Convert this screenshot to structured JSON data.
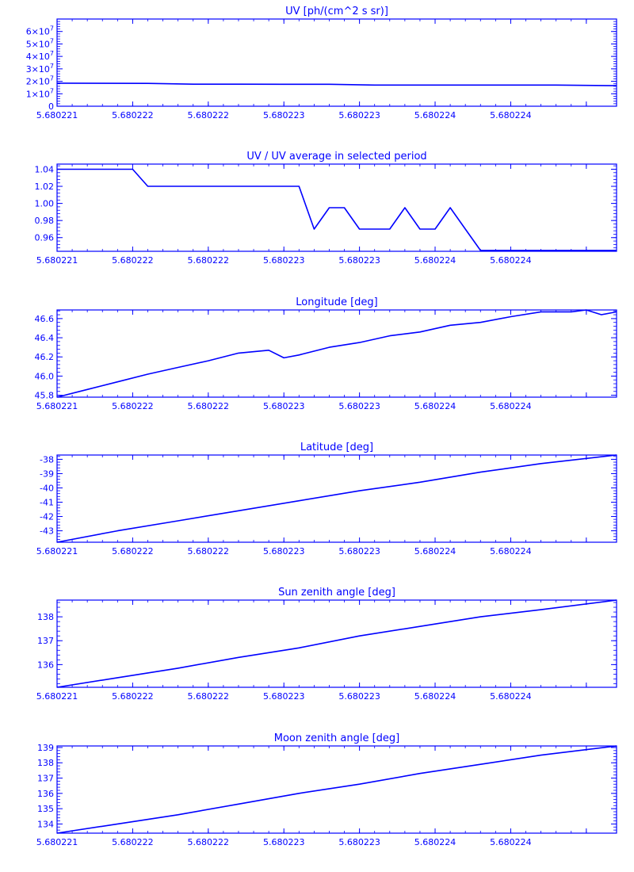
{
  "figure": {
    "color": "#0000ff",
    "background": "#ffffff"
  },
  "chart_data": [
    {
      "type": "line",
      "title": "UV [ph/(cm^2 s sr)]",
      "xlabel": "",
      "ylabel": "",
      "xlim": [
        5.680221,
        5.6802247
      ],
      "ylim": [
        0,
        70000000
      ],
      "ytick_values": [
        0,
        10000000,
        20000000,
        30000000,
        40000000,
        50000000,
        60000000
      ],
      "ytick_labels": [
        {
          "mantissa": "0",
          "exp": ""
        },
        {
          "mantissa": "1×10",
          "exp": "7"
        },
        {
          "mantissa": "2×10",
          "exp": "7"
        },
        {
          "mantissa": "3×10",
          "exp": "7"
        },
        {
          "mantissa": "4×10",
          "exp": "7"
        },
        {
          "mantissa": "5×10",
          "exp": "7"
        },
        {
          "mantissa": "6×10",
          "exp": "7"
        }
      ],
      "xtick_values": [
        5.680221,
        5.6802215,
        5.680222,
        5.6802225,
        5.680223,
        5.6802235,
        5.680224,
        5.6802245
      ],
      "xtick_labels": [
        "5.680221",
        "5.680222",
        "5.680222",
        "5.680223",
        "5.680223",
        "5.680224",
        "5.680224",
        ""
      ],
      "x": [
        5.680221,
        5.6802213,
        5.6802216,
        5.6802219,
        5.6802222,
        5.6802225,
        5.6802228,
        5.6802231,
        5.6802234,
        5.6802237,
        5.680224,
        5.6802243,
        5.6802247
      ],
      "y": [
        18500000,
        18400000,
        18300000,
        17700000,
        17700000,
        17600000,
        17600000,
        17000000,
        17000000,
        17000000,
        17000000,
        17000000,
        16500000
      ]
    },
    {
      "type": "line",
      "title": "UV / UV average in selected period",
      "xlabel": "",
      "ylabel": "",
      "xlim": [
        5.680221,
        5.6802247
      ],
      "ylim": [
        0.944,
        1.046
      ],
      "ytick_values": [
        0.96,
        0.98,
        1.0,
        1.02,
        1.04
      ],
      "ytick_labels": [
        "0.96",
        "0.98",
        "1.00",
        "1.02",
        "1.04"
      ],
      "xtick_values": [
        5.680221,
        5.6802215,
        5.680222,
        5.6802225,
        5.680223,
        5.6802235,
        5.680224,
        5.6802245
      ],
      "xtick_labels": [
        "5.680221",
        "5.680222",
        "5.680222",
        "5.680223",
        "5.680223",
        "5.680224",
        "5.680224",
        ""
      ],
      "x": [
        5.680221,
        5.6802215,
        5.6802216,
        5.6802219,
        5.6802222,
        5.6802225,
        5.6802226,
        5.6802227,
        5.6802228,
        5.6802229,
        5.680223,
        5.6802231,
        5.6802232,
        5.6802233,
        5.6802234,
        5.6802235,
        5.6802236,
        5.6802237,
        5.6802238,
        5.6802239,
        5.680224,
        5.6802241,
        5.6802242,
        5.6802243,
        5.6802244,
        5.6802245,
        5.6802246,
        5.6802247
      ],
      "y": [
        1.04,
        1.04,
        1.02,
        1.02,
        1.02,
        1.02,
        1.02,
        0.97,
        0.995,
        0.995,
        0.97,
        0.97,
        0.97,
        0.995,
        0.97,
        0.97,
        0.995,
        0.97,
        0.945,
        0.945,
        0.945,
        0.945,
        0.945,
        0.945,
        0.945,
        0.945,
        0.945,
        0.945
      ]
    },
    {
      "type": "line",
      "title": "Longitude [deg]",
      "xlabel": "",
      "ylabel": "",
      "xlim": [
        5.680221,
        5.6802247
      ],
      "ylim": [
        45.78,
        46.69
      ],
      "ytick_values": [
        45.8,
        46.0,
        46.2,
        46.4,
        46.6
      ],
      "ytick_labels": [
        "45.8",
        "46.0",
        "46.2",
        "46.4",
        "46.6"
      ],
      "xtick_values": [
        5.680221,
        5.6802215,
        5.680222,
        5.6802225,
        5.680223,
        5.6802235,
        5.680224,
        5.6802245
      ],
      "xtick_labels": [
        "5.680221",
        "5.680222",
        "5.680222",
        "5.680223",
        "5.680223",
        "5.680224",
        "5.680224",
        ""
      ],
      "x": [
        5.680221,
        5.6802212,
        5.6802214,
        5.6802216,
        5.6802218,
        5.680222,
        5.6802222,
        5.6802224,
        5.6802225,
        5.6802226,
        5.6802228,
        5.680223,
        5.6802232,
        5.6802234,
        5.6802236,
        5.6802238,
        5.680224,
        5.6802242,
        5.6802244,
        5.6802245,
        5.6802246,
        5.6802247
      ],
      "y": [
        45.78,
        45.86,
        45.94,
        46.02,
        46.09,
        46.16,
        46.24,
        46.27,
        46.19,
        46.22,
        46.3,
        46.35,
        46.42,
        46.46,
        46.53,
        46.56,
        46.62,
        46.67,
        46.67,
        46.69,
        46.64,
        46.67
      ]
    },
    {
      "type": "line",
      "title": "Latitude [deg]",
      "xlabel": "",
      "ylabel": "",
      "xlim": [
        5.680221,
        5.6802247
      ],
      "ylim": [
        -43.8,
        -37.7
      ],
      "ytick_values": [
        -43,
        -42,
        -41,
        -40,
        -39,
        -38
      ],
      "ytick_labels": [
        "-43",
        "-42",
        "-41",
        "-40",
        "-39",
        "-38"
      ],
      "xtick_values": [
        5.680221,
        5.6802215,
        5.680222,
        5.6802225,
        5.680223,
        5.6802235,
        5.680224,
        5.6802245
      ],
      "xtick_labels": [
        "5.680221",
        "5.680222",
        "5.680222",
        "5.680223",
        "5.680223",
        "5.680224",
        "5.680224",
        ""
      ],
      "x": [
        5.680221,
        5.6802214,
        5.6802218,
        5.6802222,
        5.6802226,
        5.680223,
        5.6802234,
        5.6802238,
        5.6802242,
        5.6802247
      ],
      "y": [
        -43.8,
        -43.0,
        -42.3,
        -41.6,
        -40.9,
        -40.2,
        -39.6,
        -38.9,
        -38.3,
        -37.7
      ]
    },
    {
      "type": "line",
      "title": "Sun zenith angle [deg]",
      "xlabel": "",
      "ylabel": "",
      "xlim": [
        5.680221,
        5.6802247
      ],
      "ylim": [
        135.05,
        138.7
      ],
      "ytick_values": [
        136,
        137,
        138
      ],
      "ytick_labels": [
        "136",
        "137",
        "138"
      ],
      "xtick_values": [
        5.680221,
        5.6802215,
        5.680222,
        5.6802225,
        5.680223,
        5.6802235,
        5.680224,
        5.6802245
      ],
      "xtick_labels": [
        "5.680221",
        "5.680222",
        "5.680222",
        "5.680223",
        "5.680223",
        "5.680224",
        "5.680224",
        ""
      ],
      "x": [
        5.680221,
        5.6802214,
        5.6802218,
        5.6802222,
        5.6802226,
        5.680223,
        5.6802234,
        5.6802238,
        5.6802242,
        5.6802247
      ],
      "y": [
        135.05,
        135.45,
        135.85,
        136.3,
        136.7,
        137.2,
        137.6,
        138.0,
        138.3,
        138.7
      ]
    },
    {
      "type": "line",
      "title": "Moon zenith angle [deg]",
      "xlabel": "",
      "ylabel": "",
      "xlim": [
        5.680221,
        5.6802247
      ],
      "ylim": [
        133.4,
        139.1
      ],
      "ytick_values": [
        134,
        135,
        136,
        137,
        138,
        139
      ],
      "ytick_labels": [
        "134",
        "135",
        "136",
        "137",
        "138",
        "139"
      ],
      "xtick_values": [
        5.680221,
        5.6802215,
        5.680222,
        5.6802225,
        5.680223,
        5.6802235,
        5.680224,
        5.6802245
      ],
      "xtick_labels": [
        "5.680221",
        "5.680222",
        "5.680222",
        "5.680223",
        "5.680223",
        "5.680224",
        "5.680224",
        ""
      ],
      "x": [
        5.680221,
        5.6802214,
        5.6802218,
        5.6802222,
        5.6802226,
        5.680223,
        5.6802234,
        5.6802238,
        5.6802242,
        5.6802247
      ],
      "y": [
        133.4,
        134.0,
        134.6,
        135.3,
        136.0,
        136.6,
        137.3,
        137.9,
        138.5,
        139.1
      ]
    }
  ]
}
